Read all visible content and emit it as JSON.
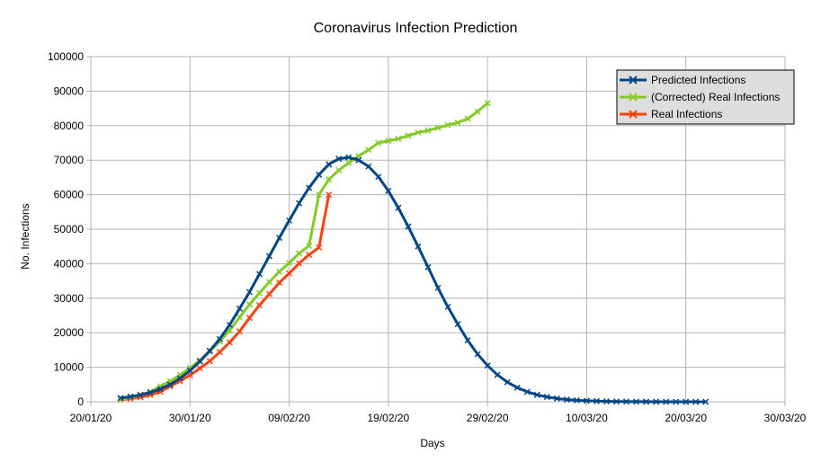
{
  "chart_data": {
    "type": "line",
    "title": "Coronavirus Infection Prediction",
    "xlabel": "Days",
    "ylabel": "No. Infections",
    "x_axis": {
      "ticks": [
        "2020-01-20",
        "2020-01-30",
        "2020-02-09",
        "2020-02-19",
        "2020-02-29",
        "2020-03-10",
        "2020-03-20",
        "2020-03-30"
      ],
      "tick_labels": [
        "20/01/20",
        "30/01/20",
        "09/02/20",
        "19/02/20",
        "29/02/20",
        "10/03/20",
        "20/03/20",
        "30/03/20"
      ],
      "range": [
        "2020-01-20",
        "2020-03-30"
      ]
    },
    "y_axis": {
      "ticks": [
        0,
        10000,
        20000,
        30000,
        40000,
        50000,
        60000,
        70000,
        80000,
        90000,
        100000
      ],
      "tick_labels": [
        "0",
        "10000",
        "20000",
        "30000",
        "40000",
        "50000",
        "60000",
        "70000",
        "80000",
        "90000",
        "100000"
      ],
      "range": [
        0,
        100000
      ]
    },
    "grid": true,
    "legend_position": "top-right",
    "series": [
      {
        "name": "Predicted Infections",
        "color": "#004586",
        "marker": "x",
        "points": [
          [
            "2020-01-23",
            1100
          ],
          [
            "2020-01-24",
            1500
          ],
          [
            "2020-01-25",
            2000
          ],
          [
            "2020-01-26",
            2700
          ],
          [
            "2020-01-27",
            3700
          ],
          [
            "2020-01-28",
            5000
          ],
          [
            "2020-01-29",
            6800
          ],
          [
            "2020-01-30",
            9000
          ],
          [
            "2020-01-31",
            11700
          ],
          [
            "2020-02-01",
            14800
          ],
          [
            "2020-02-02",
            18200
          ],
          [
            "2020-02-03",
            22300
          ],
          [
            "2020-02-04",
            27000
          ],
          [
            "2020-02-05",
            31800
          ],
          [
            "2020-02-06",
            37000
          ],
          [
            "2020-02-07",
            42200
          ],
          [
            "2020-02-08",
            47500
          ],
          [
            "2020-02-09",
            52500
          ],
          [
            "2020-02-10",
            57500
          ],
          [
            "2020-02-11",
            62000
          ],
          [
            "2020-02-12",
            65800
          ],
          [
            "2020-02-13",
            68800
          ],
          [
            "2020-02-14",
            70400
          ],
          [
            "2020-02-15",
            70800
          ],
          [
            "2020-02-16",
            70000
          ],
          [
            "2020-02-17",
            68200
          ],
          [
            "2020-02-18",
            65200
          ],
          [
            "2020-02-19",
            61100
          ],
          [
            "2020-02-20",
            56200
          ],
          [
            "2020-02-21",
            50800
          ],
          [
            "2020-02-22",
            45000
          ],
          [
            "2020-02-23",
            39000
          ],
          [
            "2020-02-24",
            33000
          ],
          [
            "2020-02-25",
            27500
          ],
          [
            "2020-02-26",
            22500
          ],
          [
            "2020-02-27",
            17800
          ],
          [
            "2020-02-28",
            13800
          ],
          [
            "2020-02-29",
            10500
          ],
          [
            "2020-03-01",
            7800
          ],
          [
            "2020-03-02",
            5700
          ],
          [
            "2020-03-03",
            4100
          ],
          [
            "2020-03-04",
            2900
          ],
          [
            "2020-03-05",
            2000
          ],
          [
            "2020-03-06",
            1400
          ],
          [
            "2020-03-07",
            950
          ],
          [
            "2020-03-08",
            630
          ],
          [
            "2020-03-09",
            420
          ],
          [
            "2020-03-10",
            280
          ],
          [
            "2020-03-11",
            180
          ],
          [
            "2020-03-12",
            120
          ],
          [
            "2020-03-13",
            80
          ],
          [
            "2020-03-14",
            50
          ],
          [
            "2020-03-15",
            30
          ],
          [
            "2020-03-16",
            20
          ],
          [
            "2020-03-17",
            12
          ],
          [
            "2020-03-18",
            8
          ],
          [
            "2020-03-19",
            5
          ],
          [
            "2020-03-20",
            3
          ],
          [
            "2020-03-21",
            2
          ],
          [
            "2020-03-22",
            1
          ]
        ]
      },
      {
        "name": "(Corrected) Real Infections",
        "color": "#83CA26",
        "marker": "x",
        "points": [
          [
            "2020-01-23",
            650
          ],
          [
            "2020-01-24",
            1300
          ],
          [
            "2020-01-25",
            2000
          ],
          [
            "2020-01-26",
            2900
          ],
          [
            "2020-01-27",
            4500
          ],
          [
            "2020-01-28",
            6000
          ],
          [
            "2020-01-29",
            7800
          ],
          [
            "2020-01-30",
            9800
          ],
          [
            "2020-01-31",
            12000
          ],
          [
            "2020-02-01",
            14600
          ],
          [
            "2020-02-02",
            17500
          ],
          [
            "2020-02-03",
            20700
          ],
          [
            "2020-02-04",
            24500
          ],
          [
            "2020-02-05",
            28200
          ],
          [
            "2020-02-06",
            31500
          ],
          [
            "2020-02-07",
            34700
          ],
          [
            "2020-02-08",
            37700
          ],
          [
            "2020-02-09",
            40200
          ],
          [
            "2020-02-10",
            43000
          ],
          [
            "2020-02-11",
            45200
          ],
          [
            "2020-02-12",
            60000
          ],
          [
            "2020-02-13",
            64400
          ],
          [
            "2020-02-14",
            67100
          ],
          [
            "2020-02-15",
            69200
          ],
          [
            "2020-02-16",
            71200
          ],
          [
            "2020-02-17",
            73000
          ],
          [
            "2020-02-18",
            75000
          ],
          [
            "2020-02-19",
            75600
          ],
          [
            "2020-02-20",
            76200
          ],
          [
            "2020-02-21",
            77100
          ],
          [
            "2020-02-22",
            78000
          ],
          [
            "2020-02-23",
            78600
          ],
          [
            "2020-02-24",
            79400
          ],
          [
            "2020-02-25",
            80200
          ],
          [
            "2020-02-26",
            80900
          ],
          [
            "2020-02-27",
            82000
          ],
          [
            "2020-02-28",
            84100
          ],
          [
            "2020-02-29",
            86500
          ]
        ]
      },
      {
        "name": "Real Infections",
        "color": "#FF420E",
        "marker": "x",
        "points": [
          [
            "2020-01-23",
            600
          ],
          [
            "2020-01-24",
            900
          ],
          [
            "2020-01-25",
            1300
          ],
          [
            "2020-01-26",
            2000
          ],
          [
            "2020-01-27",
            2900
          ],
          [
            "2020-01-28",
            4500
          ],
          [
            "2020-01-29",
            6000
          ],
          [
            "2020-01-30",
            7700
          ],
          [
            "2020-01-31",
            9700
          ],
          [
            "2020-02-01",
            11800
          ],
          [
            "2020-02-02",
            14400
          ],
          [
            "2020-02-03",
            17200
          ],
          [
            "2020-02-04",
            20400
          ],
          [
            "2020-02-05",
            24300
          ],
          [
            "2020-02-06",
            28000
          ],
          [
            "2020-02-07",
            31200
          ],
          [
            "2020-02-08",
            34500
          ],
          [
            "2020-02-09",
            37200
          ],
          [
            "2020-02-10",
            40100
          ],
          [
            "2020-02-11",
            42600
          ],
          [
            "2020-02-12",
            44700
          ],
          [
            "2020-02-13",
            60000
          ]
        ]
      }
    ]
  }
}
